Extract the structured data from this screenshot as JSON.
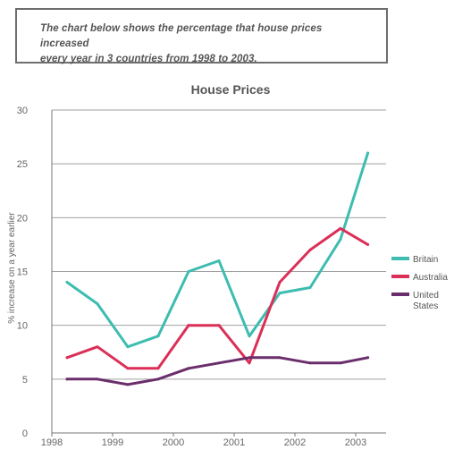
{
  "prompt": {
    "line1": "The chart below shows the percentage that house prices increased",
    "line2": "every year in 3 countries from 1998 to 2003."
  },
  "chart_data": {
    "type": "line",
    "title": "House Prices",
    "xlabel": "",
    "ylabel": "% increase on a year earlier",
    "xlim": [
      1998,
      2003.5
    ],
    "ylim": [
      0,
      30
    ],
    "x_ticks": [
      "1998",
      "1999",
      "2000",
      "2001",
      "2002",
      "2003"
    ],
    "y_ticks": [
      "0",
      "5",
      "10",
      "15",
      "20",
      "25",
      "30"
    ],
    "grid": true,
    "legend_position": "right",
    "series": [
      {
        "name": "Britain",
        "color": "#3dbcb0",
        "x": [
          1998.25,
          1998.75,
          1999.25,
          1999.75,
          2000.25,
          2000.75,
          2001.25,
          2001.75,
          2002.25,
          2002.75,
          2003.2
        ],
        "y": [
          14,
          12,
          8,
          9,
          15,
          16,
          9,
          13,
          13.5,
          18,
          26
        ]
      },
      {
        "name": "Australia",
        "color": "#db2f57",
        "x": [
          1998.25,
          1998.75,
          1999.25,
          1999.75,
          2000.25,
          2000.75,
          2001.25,
          2001.75,
          2002.25,
          2002.75,
          2003.2
        ],
        "y": [
          7,
          8,
          6,
          6,
          10,
          10,
          6.5,
          14,
          17,
          19,
          17.5
        ]
      },
      {
        "name": "United States",
        "legend_lines": [
          "United",
          "States"
        ],
        "color": "#6b2e6c",
        "x": [
          1998.25,
          1998.75,
          1999.25,
          1999.75,
          2000.25,
          2000.75,
          2001.25,
          2001.75,
          2002.25,
          2002.75,
          2003.2
        ],
        "y": [
          5,
          5,
          4.5,
          5,
          6,
          6.5,
          7,
          7,
          6.5,
          6.5,
          7
        ]
      }
    ]
  }
}
